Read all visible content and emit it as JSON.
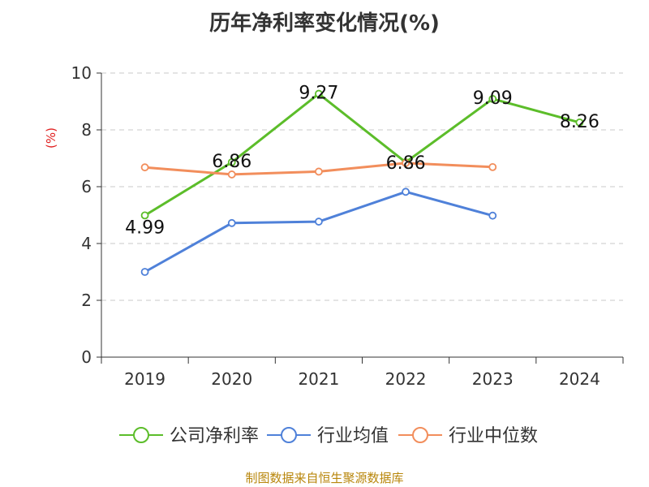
{
  "chart_data": {
    "type": "line",
    "title": "历年净利率变化情况(%)",
    "ylabel": "(%)",
    "xlabel": "",
    "categories": [
      "2019",
      "2020",
      "2021",
      "2022",
      "2023",
      "2024"
    ],
    "ylim": [
      0,
      10
    ],
    "yticks": [
      0,
      2,
      4,
      6,
      8,
      10
    ],
    "grid": true,
    "legend_position": "bottom",
    "series": [
      {
        "name": "公司净利率",
        "color": "#5cbd2a",
        "values": [
          4.99,
          6.86,
          9.27,
          6.86,
          9.09,
          8.26
        ],
        "labels": [
          "4.99",
          "6.86",
          "9.27",
          "6.86",
          "9.09",
          "8.26"
        ]
      },
      {
        "name": "行业均值",
        "color": "#4f81d9",
        "values": [
          3.0,
          4.72,
          4.77,
          5.82,
          4.98,
          null
        ],
        "labels": []
      },
      {
        "name": "行业中位数",
        "color": "#f28e5c",
        "values": [
          6.68,
          6.43,
          6.53,
          6.83,
          6.69,
          null
        ],
        "labels": []
      }
    ]
  },
  "source": "制图数据来自恒生聚源数据库"
}
